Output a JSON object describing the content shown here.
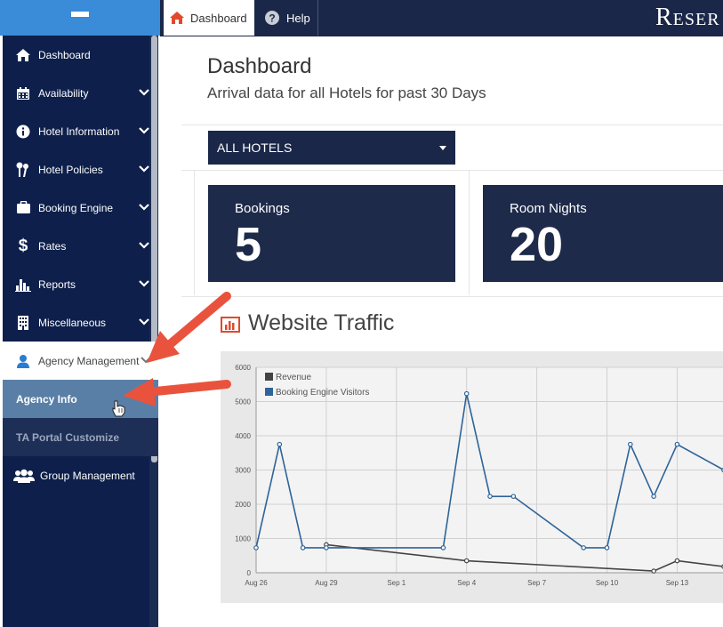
{
  "sidebar": {
    "menu_icon": "hamburger-icon",
    "items": [
      {
        "label": "Dashboard",
        "icon": "home-icon",
        "chevron": false
      },
      {
        "label": "Availability",
        "icon": "calendar-icon",
        "chevron": true
      },
      {
        "label": "Hotel Information",
        "icon": "info-icon",
        "chevron": true
      },
      {
        "label": "Hotel Policies",
        "icon": "keys-icon",
        "chevron": true
      },
      {
        "label": "Booking Engine",
        "icon": "briefcase-icon",
        "chevron": true
      },
      {
        "label": "Rates",
        "icon": "dollar-icon",
        "chevron": true
      },
      {
        "label": "Reports",
        "icon": "bar-chart-icon",
        "chevron": true
      },
      {
        "label": "Miscellaneous",
        "icon": "building-icon",
        "chevron": true
      },
      {
        "label": "Agency Management",
        "icon": "user-icon",
        "chevron": true,
        "active": true
      }
    ],
    "sub_items": [
      {
        "label": "Agency Info",
        "selected": true
      },
      {
        "label": "TA Portal Customize",
        "selected": false
      }
    ],
    "bottom_item": {
      "label": "Group Management",
      "icon": "users-icon"
    }
  },
  "topbar": {
    "tabs": [
      {
        "label": "Dashboard",
        "icon": "home-icon",
        "active": true
      },
      {
        "label": "Help",
        "icon": "question-icon",
        "active": false
      }
    ],
    "brand": "Reser"
  },
  "main": {
    "title": "Dashboard",
    "subtitle": "Arrival data for all Hotels for past 30 Days",
    "hotel_select": "ALL HOTELS",
    "stats": [
      {
        "label": "Bookings",
        "value": "5"
      },
      {
        "label": "Room Nights",
        "value": "20"
      }
    ],
    "section_title": "Website Traffic"
  },
  "colors": {
    "sidebar_bg": "#0d1f4a",
    "topbar_bg": "#1a2748",
    "accent_blue": "#3a8bd8",
    "revenue": "#444444",
    "visitors": "#2e6499",
    "arrow": "#e9533d"
  },
  "chart_data": {
    "type": "line",
    "title": "",
    "xlabel": "",
    "ylabel": "",
    "ylim": [
      0,
      6000
    ],
    "y_ticks": [
      "0",
      "1000",
      "2000",
      "3000",
      "4000",
      "5000",
      "6000"
    ],
    "x_ticks": [
      {
        "label": "Aug 26",
        "day": 0
      },
      {
        "label": "Aug 29",
        "day": 3
      },
      {
        "label": "Sep 1",
        "day": 6
      },
      {
        "label": "Sep 4",
        "day": 9
      },
      {
        "label": "Sep 7",
        "day": 12
      },
      {
        "label": "Sep 10",
        "day": 15
      },
      {
        "label": "Sep 13",
        "day": 18
      }
    ],
    "x_max_day": 20,
    "legend": {
      "placement": "top-left"
    },
    "grid": true,
    "series": [
      {
        "name": "Revenue",
        "color": "#444444",
        "points": [
          {
            "day": 3,
            "value": 820
          },
          {
            "day": 9,
            "value": 350
          },
          {
            "day": 17,
            "value": 50
          },
          {
            "day": 18,
            "value": 350
          },
          {
            "day": 20,
            "value": 180
          }
        ]
      },
      {
        "name": "Booking Engine Visitors",
        "color": "#2e6499",
        "points": [
          {
            "day": 0,
            "value": 730
          },
          {
            "day": 1,
            "value": 3750
          },
          {
            "day": 2,
            "value": 730
          },
          {
            "day": 3,
            "value": 730
          },
          {
            "day": 8,
            "value": 730
          },
          {
            "day": 9,
            "value": 5230
          },
          {
            "day": 10,
            "value": 2230
          },
          {
            "day": 11,
            "value": 2230
          },
          {
            "day": 14,
            "value": 730
          },
          {
            "day": 15,
            "value": 730
          },
          {
            "day": 16,
            "value": 3750
          },
          {
            "day": 17,
            "value": 2230
          },
          {
            "day": 18,
            "value": 3750
          },
          {
            "day": 20,
            "value": 3000
          }
        ]
      }
    ]
  }
}
